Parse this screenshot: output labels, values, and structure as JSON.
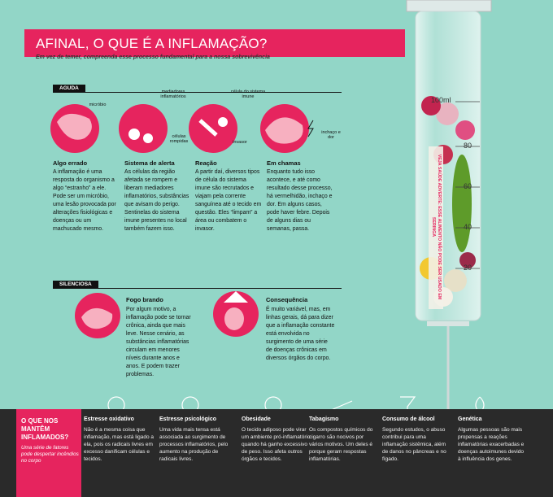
{
  "header": {
    "title": "AFINAL, O QUE É A INFLAMAÇÃO?",
    "subtitle": "Em vez de temer, compreenda esse processo fundamental para a nossa sobrevivência"
  },
  "acute": {
    "label": "AGUDA",
    "diagram_labels": [
      "micróbio",
      "mediadores inflamatórios",
      "células rompidas",
      "célula do sistema imune",
      "invasor",
      "inchaço e dor"
    ],
    "steps": [
      {
        "title": "Algo errado",
        "text": "A inflamação é uma resposta do organismo a algo “estranho” a ele. Pode ser um micróbio, uma lesão provocada por alterações fisiológicas e doenças ou um machucado mesmo."
      },
      {
        "title": "Sistema de alerta",
        "text": "As células da região afetada se rompem e liberam mediadores inflamatórios, substâncias que avisam do perigo. Sentinelas do sistema imune presentes no local também fazem isso."
      },
      {
        "title": "Reação",
        "text": "A partir daí, diversos tipos de célula do sistema imune são recrutados e viajam pela corrente sanguínea até o tecido em questão. Eles “limpam” a área ou combatem o invasor."
      },
      {
        "title": "Em chamas",
        "text": "Enquanto tudo isso acontece, e até como resultado desse processo, há vermelhidão, inchaço e dor. Em alguns casos, pode haver febre. Depois de alguns dias ou semanas, passa."
      }
    ]
  },
  "silent": {
    "label": "SILENCIOSA",
    "steps": [
      {
        "title": "Fogo brando",
        "text": "Por algum motivo, a inflamação pode se tornar crônica, ainda que mais leve. Nesse cenário, as substâncias inflamatórias circulam em menores níveis durante anos e anos. E podem trazer problemas."
      },
      {
        "title": "Consequência",
        "text": "É muito variável, mas, em linhas gerais, dá para dizer que a inflamação constante está envolvida no surgimento de uma série de doenças crônicas em diversos órgãos do corpo."
      }
    ]
  },
  "syringe": {
    "marks": [
      "100ml",
      "80",
      "60",
      "40",
      "20"
    ],
    "warning": "VEJA SAÚDE ADVERTE: ESSE ALIMENTO NÃO PODE SER USADO EM SERINGA"
  },
  "factors": {
    "title": "O QUE NOS MANTÊM INFLAMADOS?",
    "subtitle": "Uma série de fatores pode despertar incêndios no corpo",
    "items": [
      {
        "title": "Estresse oxidativo",
        "text": "Não é a mesma coisa que inflamação, mas está ligado a ela, pois os radicais livres em excesso danificam células e tecidos."
      },
      {
        "title": "Estresse psicológico",
        "text": "Uma vida mais tensa está associada ao surgimento de processos inflamatórios, pelo aumento na produção de radicais livres."
      },
      {
        "title": "Obesidade",
        "text": "O tecido adiposo pode virar um ambiente pró-inflamatório quando há ganho excessivo de peso. Isso afeta outros órgãos e tecidos."
      },
      {
        "title": "Tabagismo",
        "text": "Os compostos químicos do cigarro são nocivos por vários motivos. Um deles é porque geram respostas inflamatórias."
      },
      {
        "title": "Consumo de álcool",
        "text": "Segundo estudos, o abuso contribui para uma inflamação sistêmica, além de danos no pâncreas e no fígado."
      },
      {
        "title": "Genética",
        "text": "Algumas pessoas são mais propensas a reações inflamatórias exacerbadas e doenças autoimunes devido à influência dos genes."
      }
    ]
  }
}
